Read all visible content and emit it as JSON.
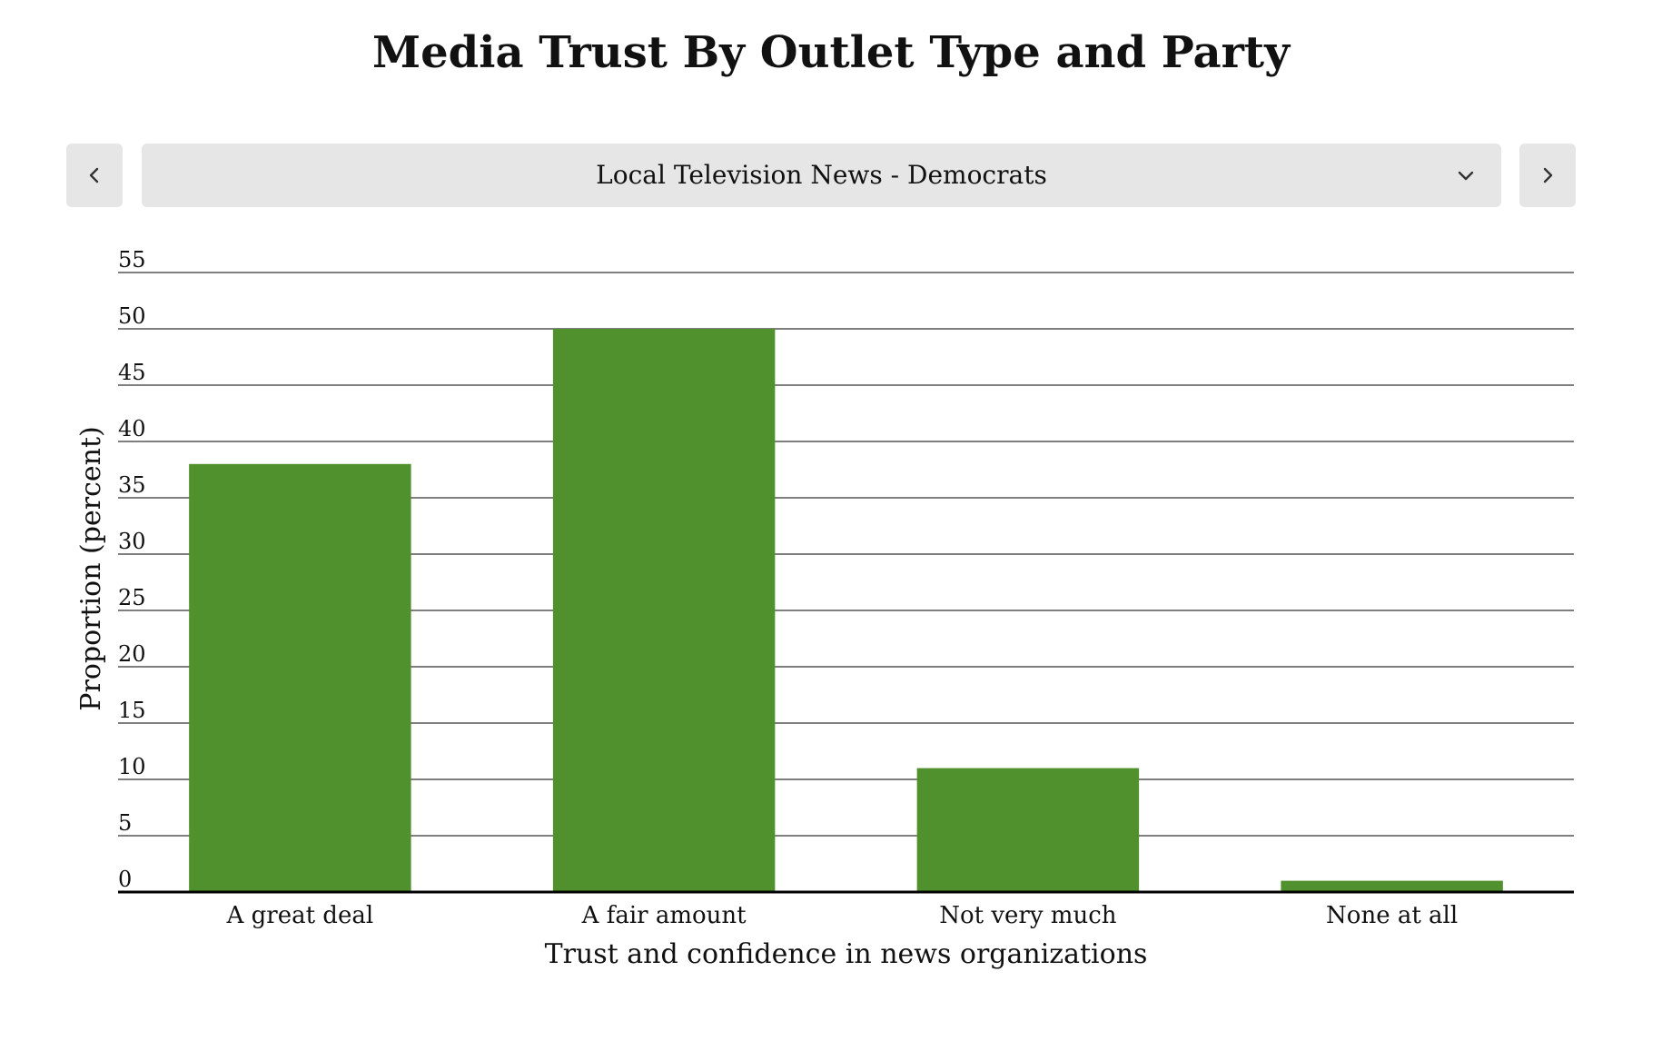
{
  "page": {
    "title": "Media Trust By Outlet Type and Party"
  },
  "selector": {
    "value": "Local Television News - Democrats",
    "prev_icon": "chevron-left-icon",
    "next_icon": "chevron-right-icon",
    "dropdown_icon": "chevron-down-icon"
  },
  "colors": {
    "bar": "#50912e",
    "grid": "#555555",
    "axis": "#000000",
    "control_bg": "#e6e6e6"
  },
  "chart_data": {
    "type": "bar",
    "title": "Media Trust By Outlet Type and Party",
    "categories": [
      "A great deal",
      "A fair amount",
      "Not very much",
      "None at all"
    ],
    "values": [
      38,
      50,
      11,
      1
    ],
    "xlabel": "Trust and confidence in news organizations",
    "ylabel": "Proportion (percent)",
    "ylim": [
      0,
      55
    ],
    "yticks": [
      0,
      5,
      10,
      15,
      20,
      25,
      30,
      35,
      40,
      45,
      50,
      55
    ],
    "grid": true,
    "legend": "none"
  }
}
